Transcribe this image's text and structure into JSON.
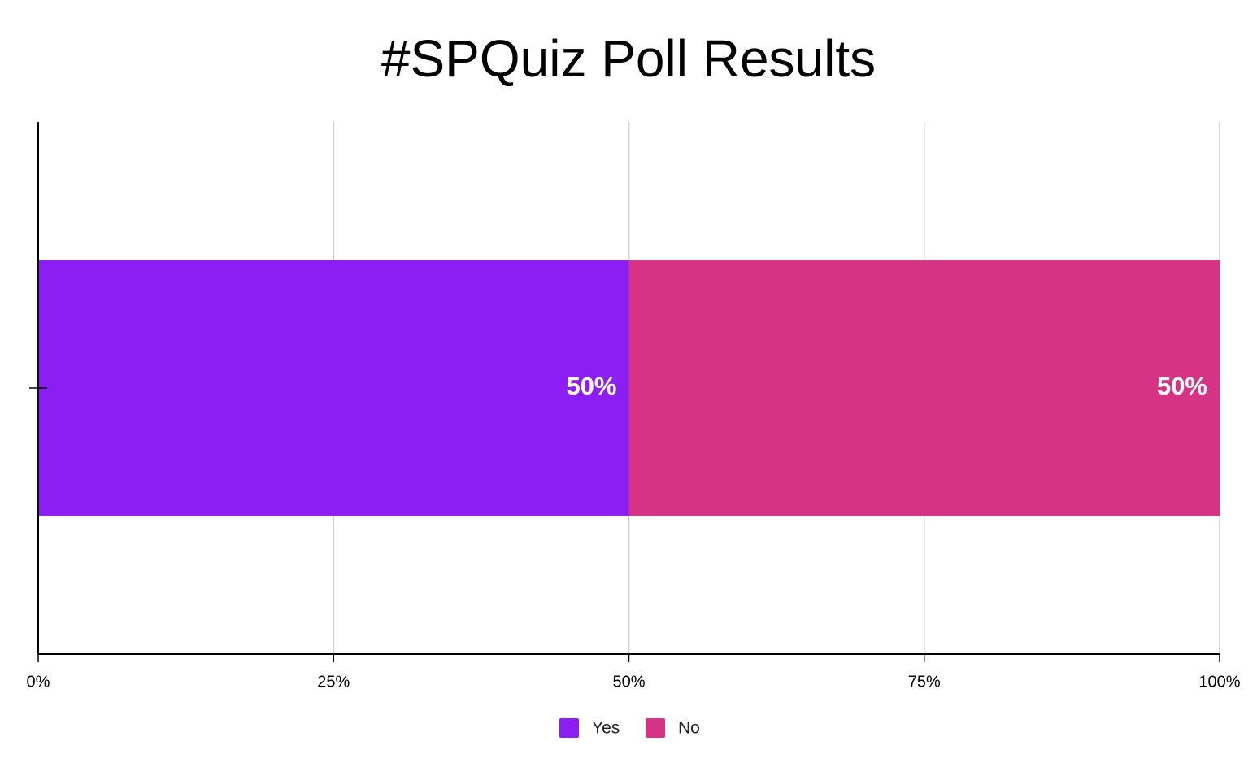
{
  "chart_data": {
    "type": "stacked-bar-horizontal",
    "title": "#SPQuiz Poll Results",
    "categories": [
      null
    ],
    "series": [
      {
        "name": "Yes",
        "color": "#8b1ef3",
        "values": [
          50
        ],
        "value_labels": [
          "50%"
        ]
      },
      {
        "name": "No",
        "color": "#d63384",
        "values": [
          50
        ],
        "value_labels": [
          "50%"
        ]
      }
    ],
    "xlim": [
      0,
      100
    ],
    "xticks": [
      {
        "value": 0,
        "label": "0%"
      },
      {
        "value": 25,
        "label": "25%"
      },
      {
        "value": 50,
        "label": "50%"
      },
      {
        "value": 75,
        "label": "75%"
      },
      {
        "value": 100,
        "label": "100%"
      }
    ],
    "grid": true,
    "legend": "bottom"
  }
}
